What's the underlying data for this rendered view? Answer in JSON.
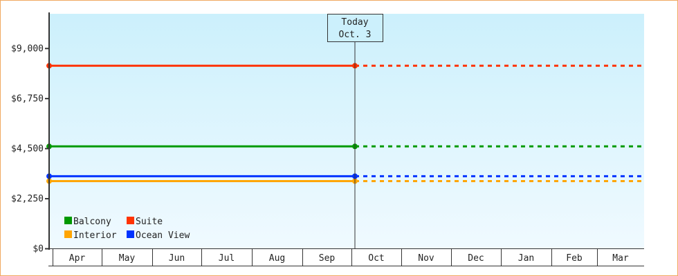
{
  "chart_data": {
    "type": "line",
    "title": "",
    "xlabel": "",
    "ylabel": "",
    "categories": [
      "Apr",
      "May",
      "Jun",
      "Jul",
      "Aug",
      "Sep",
      "Oct",
      "Nov",
      "Dec",
      "Jan",
      "Feb",
      "Mar"
    ],
    "ylim": [
      0,
      10560
    ],
    "yticks": [
      0,
      2250,
      4500,
      6750,
      9000
    ],
    "ytick_labels": [
      "$0",
      "$2,250",
      "$4,500",
      "$6,750",
      "$9,000"
    ],
    "grid": false,
    "legend": "bottom-left",
    "today_marker": {
      "line1": "Today",
      "line2": "Oct. 3"
    },
    "series": [
      {
        "name": "Balcony",
        "color": "#009900",
        "values_past": [
          4600,
          4600
        ],
        "projection": 4600
      },
      {
        "name": "Suite",
        "color": "#ff3300",
        "values_past": [
          8225,
          8225
        ],
        "projection": 8225
      },
      {
        "name": "Interior",
        "color": "#ffa500",
        "values_past": [
          3040,
          3040
        ],
        "projection": 3040
      },
      {
        "name": "Ocean View",
        "color": "#0033ff",
        "values_past": [
          3260,
          3260
        ],
        "projection": 3260
      }
    ]
  }
}
